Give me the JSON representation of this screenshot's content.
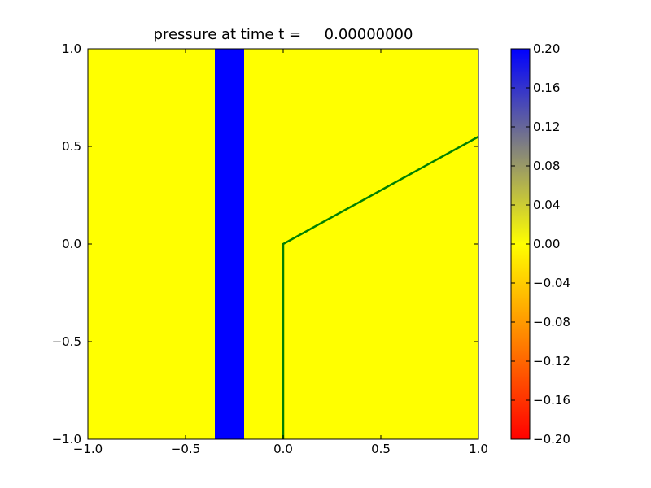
{
  "chart_data": {
    "type": "heatmap",
    "title": "pressure at time t =     0.00000000",
    "xlabel": "",
    "ylabel": "",
    "xlim": [
      -1.0,
      1.0
    ],
    "ylim": [
      -1.0,
      1.0
    ],
    "x_ticks": [
      -1.0,
      -0.5,
      0.0,
      0.5,
      1.0
    ],
    "x_tick_labels": [
      "−1.0",
      "−0.5",
      "0.0",
      "0.5",
      "1.0"
    ],
    "y_ticks": [
      1.0,
      0.5,
      0.0,
      -0.5,
      -1.0
    ],
    "y_tick_labels": [
      "1.0",
      "0.5",
      "0.0",
      "−0.5",
      "−1.0"
    ],
    "grid": false,
    "field": {
      "background_value": 0.0,
      "background_color": "#ffff00",
      "band": {
        "x_range": [
          -0.35,
          -0.2
        ],
        "y_range": [
          -1.0,
          1.0
        ],
        "value": 0.2,
        "color": "#0000ff"
      }
    },
    "interface_line": {
      "color": "#008000",
      "points": [
        [
          0.0,
          -1.0
        ],
        [
          0.0,
          0.0
        ],
        [
          1.0,
          0.55
        ]
      ]
    },
    "colorbar": {
      "range": [
        -0.2,
        0.2
      ],
      "ticks": [
        0.2,
        0.16,
        0.12,
        0.08,
        0.04,
        0.0,
        -0.04,
        -0.08,
        -0.12,
        -0.16,
        -0.2
      ],
      "tick_labels": [
        "0.20",
        "0.16",
        "0.12",
        "0.08",
        "0.04",
        "0.00",
        "−0.04",
        "−0.08",
        "−0.12",
        "−0.16",
        "−0.20"
      ],
      "colors": [
        {
          "value": -0.2,
          "color": "#ff0000"
        },
        {
          "value": -0.1,
          "color": "#ff8000"
        },
        {
          "value": 0.0,
          "color": "#ffff00"
        },
        {
          "value": 0.1,
          "color": "#808080"
        },
        {
          "value": 0.2,
          "color": "#0000ff"
        }
      ]
    }
  }
}
